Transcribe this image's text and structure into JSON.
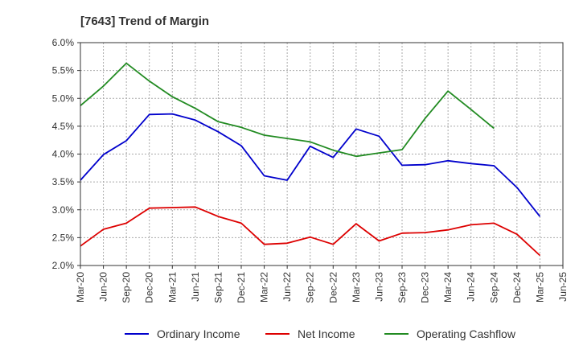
{
  "chart_data": {
    "type": "line",
    "title": "[7643]  Trend of Margin",
    "xlabel": "",
    "ylabel": "",
    "x": [
      "Mar-20",
      "Jun-20",
      "Sep-20",
      "Dec-20",
      "Mar-21",
      "Jun-21",
      "Sep-21",
      "Dec-21",
      "Mar-22",
      "Jun-22",
      "Sep-22",
      "Dec-22",
      "Mar-23",
      "Jun-23",
      "Sep-23",
      "Dec-23",
      "Mar-24",
      "Jun-24",
      "Sep-24",
      "Dec-24",
      "Mar-25",
      "Jun-25"
    ],
    "y_ticks": [
      "2.0%",
      "2.5%",
      "3.0%",
      "3.5%",
      "4.0%",
      "4.5%",
      "5.0%",
      "5.5%",
      "6.0%"
    ],
    "ylim": [
      2.0,
      6.0
    ],
    "grid": true,
    "legend_position": "bottom",
    "series": [
      {
        "name": "Ordinary Income",
        "color": "#0000cc",
        "values": [
          3.53,
          3.99,
          4.24,
          4.71,
          4.72,
          4.61,
          4.4,
          4.15,
          3.61,
          3.53,
          4.14,
          3.94,
          4.45,
          4.32,
          3.8,
          3.81,
          3.88,
          3.83,
          3.79,
          3.4,
          2.88,
          null
        ]
      },
      {
        "name": "Net Income",
        "color": "#dd0000",
        "values": [
          2.35,
          2.65,
          2.76,
          3.03,
          3.04,
          3.05,
          2.88,
          2.76,
          2.38,
          2.4,
          2.51,
          2.38,
          2.75,
          2.44,
          2.58,
          2.59,
          2.64,
          2.73,
          2.76,
          2.56,
          2.18,
          null
        ]
      },
      {
        "name": "Operating Cashflow",
        "color": "#228b22",
        "values": [
          4.87,
          5.22,
          5.63,
          5.31,
          5.03,
          4.82,
          4.58,
          4.48,
          4.34,
          4.28,
          4.22,
          4.07,
          3.96,
          4.02,
          4.08,
          4.64,
          5.13,
          4.8,
          4.46,
          null,
          null,
          null
        ]
      }
    ]
  }
}
